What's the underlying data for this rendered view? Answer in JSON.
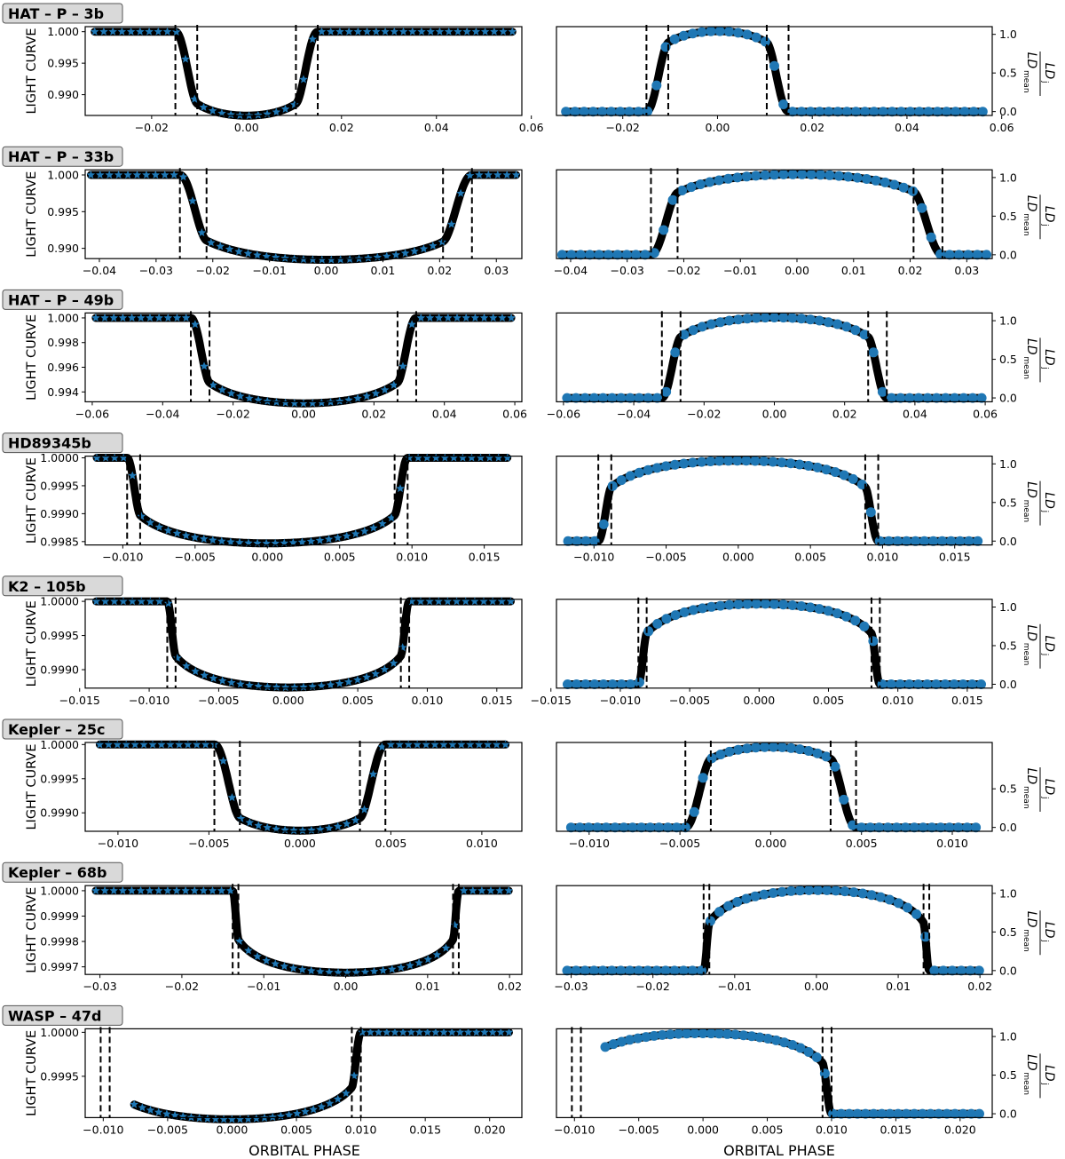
{
  "figure": {
    "left_ylabel": "LIGHT CURVE",
    "right_ylabel_num": "LD",
    "right_ylabel_num_sub": "j",
    "right_ylabel_den": "LD",
    "right_ylabel_den_sub": "mean",
    "xlabel": "ORBITAL PHASE"
  },
  "colors": {
    "model": "#000000",
    "points": "#1f77b4",
    "tag_bg": "#d9d9d9",
    "tag_border": "#555555"
  },
  "chart_data": [
    {
      "planet": "HAT – P – 3b",
      "light_curve": {
        "type": "line",
        "xlim": [
          -0.034,
          0.058
        ],
        "xticks": [
          "−0.02",
          "0.00",
          "0.02",
          "0.04",
          "0.06"
        ],
        "xtick_values": [
          -0.02,
          0.0,
          0.02,
          0.04,
          0.06
        ],
        "ylim": [
          0.9867,
          1.0008
        ],
        "yticks": [
          "0.990",
          "0.995",
          "1.000"
        ],
        "ytick_values": [
          0.99,
          0.995,
          1.0
        ],
        "x_range": [
          -0.032,
          0.056
        ],
        "baseline": 1.0,
        "min_value": 0.9872,
        "contacts": [
          -0.015,
          -0.0104,
          0.0104,
          0.015
        ],
        "markers": "star"
      },
      "limb_darkening": {
        "type": "line",
        "xlim": [
          -0.034,
          0.058
        ],
        "xticks": [
          "−0.02",
          "0.00",
          "0.02",
          "0.04",
          "0.06"
        ],
        "xtick_values": [
          -0.02,
          0.0,
          0.02,
          0.04,
          0.06
        ],
        "ylim": [
          -0.05,
          1.1
        ],
        "yticks": [
          "0.0",
          "0.5",
          "1.0"
        ],
        "ytick_values": [
          0.0,
          0.5,
          1.0
        ],
        "x_range": [
          -0.032,
          0.056
        ],
        "contacts": [
          -0.015,
          -0.0104,
          0.0104,
          0.015
        ],
        "markers": "circle"
      }
    },
    {
      "planet": "HAT – P – 33b",
      "light_curve": {
        "type": "line",
        "xlim": [
          -0.0425,
          0.0345
        ],
        "xticks": [
          "−0.04",
          "−0.03",
          "−0.02",
          "−0.01",
          "0.00",
          "0.01",
          "0.02",
          "0.03"
        ],
        "xtick_values": [
          -0.04,
          -0.03,
          -0.02,
          -0.01,
          0.0,
          0.01,
          0.02,
          0.03
        ],
        "ylim": [
          0.9886,
          1.0007
        ],
        "yticks": [
          "0.990",
          "0.995",
          "1.000"
        ],
        "ytick_values": [
          0.99,
          0.995,
          1.0
        ],
        "x_range": [
          -0.0415,
          0.0335
        ],
        "baseline": 1.0,
        "min_value": 0.9889,
        "contacts": [
          -0.0258,
          -0.0211,
          0.0206,
          0.0257
        ],
        "markers": "star"
      },
      "limb_darkening": {
        "type": "line",
        "xlim": [
          -0.0425,
          0.0345
        ],
        "xticks": [
          "−0.04",
          "−0.03",
          "−0.02",
          "−0.01",
          "0.00",
          "0.01",
          "0.02",
          "0.03"
        ],
        "xtick_values": [
          -0.04,
          -0.03,
          -0.02,
          -0.01,
          0.0,
          0.01,
          0.02,
          0.03
        ],
        "ylim": [
          -0.05,
          1.1
        ],
        "yticks": [
          "0.0",
          "0.5",
          "1.0"
        ],
        "ytick_values": [
          0.0,
          0.5,
          1.0
        ],
        "x_range": [
          -0.0415,
          0.0335
        ],
        "contacts": [
          -0.0258,
          -0.0211,
          0.0206,
          0.0257
        ],
        "markers": "circle"
      }
    },
    {
      "planet": "HAT – P – 49b",
      "light_curve": {
        "type": "line",
        "xlim": [
          -0.062,
          0.062
        ],
        "xticks": [
          "−0.06",
          "−0.04",
          "−0.02",
          "0.00",
          "0.02",
          "0.04",
          "0.06"
        ],
        "xtick_values": [
          -0.06,
          -0.04,
          -0.02,
          0.0,
          0.02,
          0.04,
          0.06
        ],
        "ylim": [
          0.9932,
          1.0004
        ],
        "yticks": [
          "0.994",
          "0.996",
          "0.998",
          "1.000"
        ],
        "ytick_values": [
          0.994,
          0.996,
          0.998,
          1.0
        ],
        "x_range": [
          -0.059,
          0.059
        ],
        "baseline": 1.0,
        "min_value": 0.99335,
        "contacts": [
          -0.032,
          -0.0267,
          0.0267,
          0.032
        ],
        "markers": "star"
      },
      "limb_darkening": {
        "type": "line",
        "xlim": [
          -0.062,
          0.062
        ],
        "xticks": [
          "−0.06",
          "−0.04",
          "−0.02",
          "0.00",
          "0.02",
          "0.04",
          "0.06"
        ],
        "xtick_values": [
          -0.06,
          -0.04,
          -0.02,
          0.0,
          0.02,
          0.04,
          0.06
        ],
        "ylim": [
          -0.05,
          1.1
        ],
        "yticks": [
          "0.0",
          "0.5",
          "1.0"
        ],
        "ytick_values": [
          0.0,
          0.5,
          1.0
        ],
        "x_range": [
          -0.059,
          0.059
        ],
        "contacts": [
          -0.032,
          -0.0267,
          0.0267,
          0.032
        ],
        "markers": "circle"
      }
    },
    {
      "planet": "HD89345b",
      "light_curve": {
        "type": "line",
        "xlim": [
          -0.0126,
          0.0176
        ],
        "xticks": [
          "−0.010",
          "−0.005",
          "0.000",
          "0.005",
          "0.010",
          "0.015"
        ],
        "xtick_values": [
          -0.01,
          -0.005,
          0.0,
          0.005,
          0.01,
          0.015
        ],
        "ylim": [
          0.99844,
          1.00003
        ],
        "yticks": [
          "0.9985",
          "0.9990",
          "0.9995",
          "1.0000"
        ],
        "ytick_values": [
          0.9985,
          0.999,
          0.9995,
          1.0
        ],
        "x_range": [
          -0.0118,
          0.0166
        ],
        "baseline": 1.0,
        "min_value": 0.99853,
        "contacts": [
          -0.0097,
          -0.0088,
          0.0088,
          0.0097
        ],
        "markers": "star"
      },
      "limb_darkening": {
        "type": "line",
        "xlim": [
          -0.0126,
          0.0176
        ],
        "xticks": [
          "−0.010",
          "−0.005",
          "0.000",
          "0.005",
          "0.010",
          "0.015"
        ],
        "xtick_values": [
          -0.01,
          -0.005,
          0.0,
          0.005,
          0.01,
          0.015
        ],
        "ylim": [
          -0.05,
          1.1
        ],
        "yticks": [
          "0.0",
          "0.5",
          "1.0"
        ],
        "ytick_values": [
          0.0,
          0.5,
          1.0
        ],
        "x_range": [
          -0.0118,
          0.0166
        ],
        "contacts": [
          -0.0097,
          -0.0088,
          0.0088,
          0.0097
        ],
        "markers": "circle"
      }
    },
    {
      "planet": "K2 – 105b",
      "light_curve": {
        "type": "line",
        "xlim": [
          -0.0146,
          0.0168
        ],
        "xticks": [
          "−0.015",
          "−0.010",
          "−0.005",
          "0.000",
          "0.005",
          "0.010",
          "0.015"
        ],
        "xtick_values": [
          -0.015,
          -0.01,
          -0.005,
          0.0,
          0.005,
          0.01,
          0.015
        ],
        "ylim": [
          0.99873,
          1.00003
        ],
        "yticks": [
          "0.9990",
          "0.9995",
          "1.0000"
        ],
        "ytick_values": [
          0.999,
          0.9995,
          1.0
        ],
        "x_range": [
          -0.0138,
          0.016
        ],
        "baseline": 1.0,
        "min_value": 0.99879,
        "contacts": [
          -0.0087,
          -0.0081,
          0.0081,
          0.0087
        ],
        "markers": "star"
      },
      "limb_darkening": {
        "type": "line",
        "xlim": [
          -0.0146,
          0.0168
        ],
        "xticks": [
          "−0.015",
          "−0.010",
          "−0.005",
          "0.000",
          "0.005",
          "0.010",
          "0.015"
        ],
        "xtick_values": [
          -0.015,
          -0.01,
          -0.005,
          0.0,
          0.005,
          0.01,
          0.015
        ],
        "ylim": [
          -0.05,
          1.1
        ],
        "yticks": [
          "0.0",
          "0.5",
          "1.0"
        ],
        "ytick_values": [
          0.0,
          0.5,
          1.0
        ],
        "x_range": [
          -0.0138,
          0.016
        ],
        "contacts": [
          -0.0087,
          -0.0081,
          0.0081,
          0.0087
        ],
        "markers": "circle"
      }
    },
    {
      "planet": "Kepler – 25c",
      "light_curve": {
        "type": "line",
        "xlim": [
          -0.0118,
          0.0122
        ],
        "xticks": [
          "−0.010",
          "−0.005",
          "0.000",
          "0.005",
          "0.010"
        ],
        "xtick_values": [
          -0.01,
          -0.005,
          0.0,
          0.005,
          0.01
        ],
        "ylim": [
          0.99873,
          1.00003
        ],
        "yticks": [
          "0.9990",
          "0.9995",
          "1.0000"
        ],
        "ytick_values": [
          0.999,
          0.9995,
          1.0
        ],
        "x_range": [
          -0.011,
          0.0113
        ],
        "baseline": 1.0,
        "min_value": 0.99879,
        "contacts": [
          -0.0047,
          -0.0033,
          0.0033,
          0.0047
        ],
        "markers": "star"
      },
      "limb_darkening": {
        "type": "line",
        "xlim": [
          -0.0118,
          0.0122
        ],
        "xticks": [
          "−0.010",
          "−0.005",
          "0.000",
          "0.005",
          "0.010"
        ],
        "xtick_values": [
          -0.01,
          -0.005,
          0.0,
          0.005,
          0.01
        ],
        "ylim": [
          -0.05,
          1.1
        ],
        "yticks": [
          "0.0",
          "0.5"
        ],
        "ytick_values": [
          0.0,
          0.5
        ],
        "x_range": [
          -0.011,
          0.0113
        ],
        "contacts": [
          -0.0047,
          -0.0033,
          0.0033,
          0.0047
        ],
        "markers": "circle"
      }
    },
    {
      "planet": "Kepler – 68b",
      "light_curve": {
        "type": "line",
        "xlim": [
          -0.0318,
          0.0215
        ],
        "xticks": [
          "−0.03",
          "−0.02",
          "−0.01",
          "0.00",
          "0.01",
          "0.02"
        ],
        "xtick_values": [
          -0.03,
          -0.02,
          -0.01,
          0.0,
          0.01,
          0.02
        ],
        "ylim": [
          0.99967,
          1.00002
        ],
        "yticks": [
          "0.9997",
          "0.9998",
          "0.9999",
          "1.0000"
        ],
        "ytick_values": [
          0.9997,
          0.9998,
          0.9999,
          1.0
        ],
        "x_range": [
          -0.0305,
          0.0199
        ],
        "baseline": 1.0,
        "min_value": 0.99969,
        "contacts": [
          -0.0138,
          -0.0131,
          0.0131,
          0.0138
        ],
        "markers": "star"
      },
      "limb_darkening": {
        "type": "line",
        "xlim": [
          -0.0318,
          0.0215
        ],
        "xticks": [
          "−0.03",
          "−0.02",
          "−0.01",
          "0.00",
          "0.01",
          "0.02"
        ],
        "xtick_values": [
          -0.03,
          -0.02,
          -0.01,
          0.0,
          0.01,
          0.02
        ],
        "ylim": [
          -0.05,
          1.1
        ],
        "yticks": [
          "0.0",
          "0.5",
          "1.0"
        ],
        "ytick_values": [
          0.0,
          0.5,
          1.0
        ],
        "x_range": [
          -0.0305,
          0.0199
        ],
        "contacts": [
          -0.0138,
          -0.0131,
          0.0131,
          0.0138
        ],
        "markers": "circle"
      }
    },
    {
      "planet": "WASP – 47d",
      "light_curve": {
        "type": "line",
        "xlim": [
          -0.0114,
          0.0225
        ],
        "xticks": [
          "−0.010",
          "−0.005",
          "0.000",
          "0.005",
          "0.010",
          "0.015",
          "0.020"
        ],
        "xtick_values": [
          -0.01,
          -0.005,
          0.0,
          0.005,
          0.01,
          0.015,
          0.02
        ],
        "ylim": [
          0.99903,
          1.00004
        ],
        "yticks": [
          "0.9995",
          "1.0000"
        ],
        "ytick_values": [
          0.9995,
          1.0
        ],
        "x_range": [
          -0.0076,
          0.0215
        ],
        "baseline": 1.0,
        "min_value": 0.99905,
        "contacts": [
          -0.0102,
          -0.0095,
          0.0093,
          0.01
        ],
        "markers": "star"
      },
      "limb_darkening": {
        "type": "line",
        "xlim": [
          -0.0114,
          0.0225
        ],
        "xticks": [
          "−0.010",
          "−0.005",
          "0.000",
          "0.005",
          "0.010",
          "0.015",
          "0.020"
        ],
        "xtick_values": [
          -0.01,
          -0.005,
          0.0,
          0.005,
          0.01,
          0.015,
          0.02
        ],
        "ylim": [
          -0.05,
          1.1
        ],
        "yticks": [
          "0.0",
          "0.5",
          "1.0"
        ],
        "ytick_values": [
          0.0,
          0.5,
          1.0
        ],
        "x_range": [
          -0.0076,
          0.0215
        ],
        "contacts": [
          -0.0102,
          -0.0095,
          0.0093,
          0.01
        ],
        "markers": "circle"
      }
    }
  ]
}
